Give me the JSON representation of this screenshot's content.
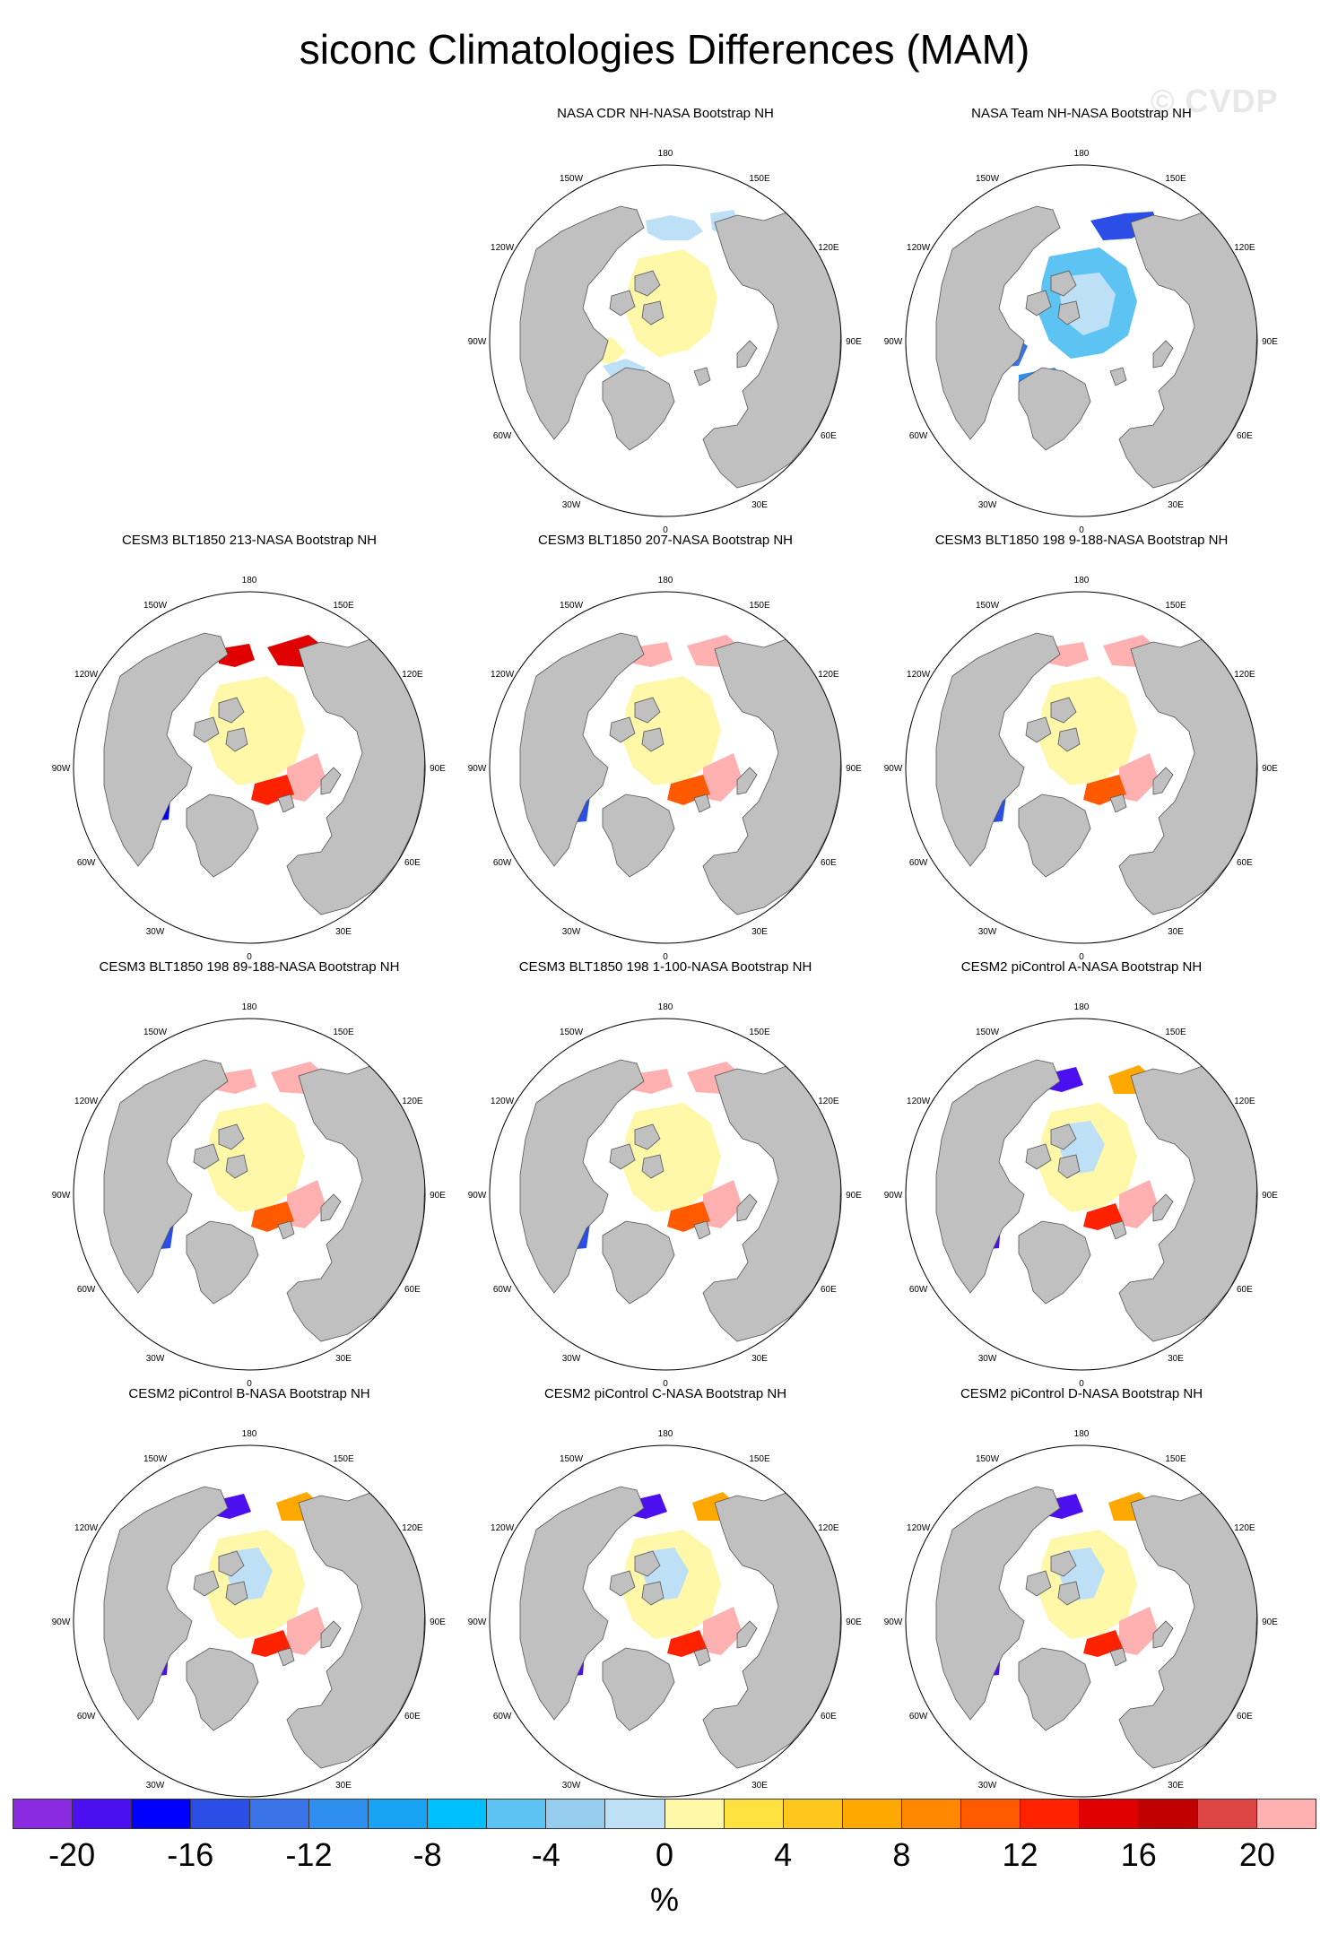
{
  "title": "siconc Climatologies Differences (MAM)",
  "watermark": "© CVDP",
  "map_style": {
    "ocean": "#ffffff",
    "land": "#c0c0c0",
    "coast": "#555555"
  },
  "longitude_labels": [
    "180",
    "150E",
    "120E",
    "90E",
    "60E",
    "30E",
    "0",
    "30W",
    "60W",
    "90W",
    "120W",
    "150W"
  ],
  "panels": [
    {
      "title": "NASA CDR NH-NASA Bootstrap NH",
      "palette": "cdr"
    },
    {
      "title": "NASA Team NH-NASA Bootstrap NH",
      "palette": "team"
    },
    {
      "title": "CESM3 BLT1850 213-NASA Bootstrap NH",
      "palette": "cesm3"
    },
    {
      "title": "CESM3 BLT1850 207-NASA Bootstrap NH",
      "palette": "cesm3b"
    },
    {
      "title": "CESM3 BLT1850 198 9-188-NASA Bootstrap NH",
      "palette": "cesm3b"
    },
    {
      "title": "CESM3 BLT1850 198 89-188-NASA Bootstrap NH",
      "palette": "cesm3b"
    },
    {
      "title": "CESM3 BLT1850 198 1-100-NASA Bootstrap NH",
      "palette": "cesm3b"
    },
    {
      "title": "CESM2 piControl A-NASA Bootstrap NH",
      "palette": "cesm2"
    },
    {
      "title": "CESM2 piControl B-NASA Bootstrap NH",
      "palette": "cesm2"
    },
    {
      "title": "CESM2 piControl C-NASA Bootstrap NH",
      "palette": "cesm2"
    },
    {
      "title": "CESM2 piControl D-NASA Bootstrap NH",
      "palette": "cesm2"
    }
  ],
  "colorbar": {
    "colors": [
      "#8a2be2",
      "#4b0ff0",
      "#0000ff",
      "#2b4ee6",
      "#3a73e8",
      "#2e8ff0",
      "#19a3f5",
      "#00bfff",
      "#5cc3f2",
      "#96cdee",
      "#bde0f6",
      "#fff8a8",
      "#ffe240",
      "#ffc61e",
      "#ffa800",
      "#ff8800",
      "#ff5a00",
      "#ff2200",
      "#e00000",
      "#c00000",
      "#dd4444",
      "#ffb0b0"
    ],
    "tick_labels": [
      "-20",
      "-16",
      "-12",
      "-8",
      "-4",
      "0",
      "4",
      "8",
      "12",
      "16",
      "20"
    ],
    "units": "%"
  }
}
